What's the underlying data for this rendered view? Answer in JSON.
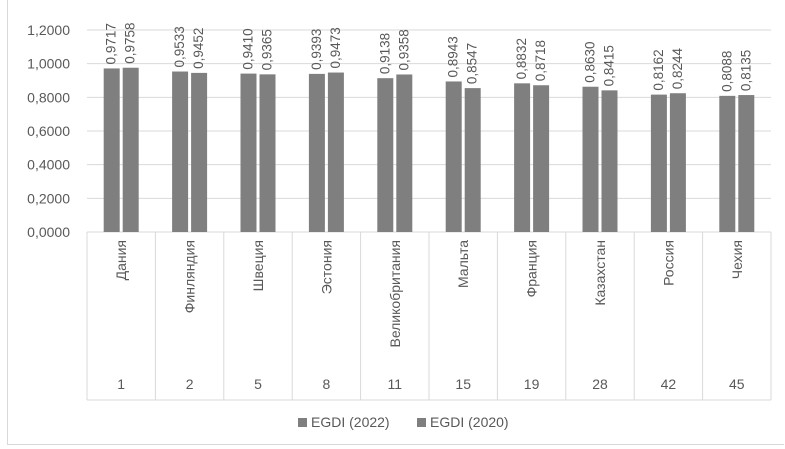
{
  "chart_data": {
    "type": "bar",
    "categories": [
      "Дания",
      "Финляндия",
      "Швеция",
      "Эстония",
      "Великобритания",
      "Мальта",
      "Франция",
      "Казахстан",
      "Россия",
      "Чехия"
    ],
    "ranks": [
      "1",
      "2",
      "5",
      "8",
      "11",
      "15",
      "19",
      "28",
      "42",
      "45"
    ],
    "series": [
      {
        "name": "EGDI (2022)",
        "values": [
          0.9717,
          0.9533,
          0.941,
          0.9393,
          0.9138,
          0.8943,
          0.8832,
          0.863,
          0.8162,
          0.8088
        ]
      },
      {
        "name": "EGDI (2020)",
        "values": [
          0.9758,
          0.9452,
          0.9365,
          0.9473,
          0.9358,
          0.8547,
          0.8718,
          0.8415,
          0.8244,
          0.8135
        ]
      }
    ],
    "data_labels": [
      [
        "0,9717",
        "0,9533",
        "0,9410",
        "0,9393",
        "0,9138",
        "0,8943",
        "0,8832",
        "0,8630",
        "0,8162",
        "0,8088"
      ],
      [
        "0,9758",
        "0,9452",
        "0,9365",
        "0,9473",
        "0,9358",
        "0,8547",
        "0,8718",
        "0,8415",
        "0,8244",
        "0,8135"
      ]
    ],
    "yticks": [
      "0,0000",
      "0,2000",
      "0,4000",
      "0,6000",
      "0,8000",
      "1,0000",
      "1,2000"
    ],
    "ylim": [
      0,
      1.2
    ],
    "grid": true,
    "legend_position": "bottom",
    "colors": {
      "series": [
        "#7f7f7f",
        "#7f7f7f"
      ],
      "grid": "#d9d9d9",
      "text": "#595959"
    }
  }
}
